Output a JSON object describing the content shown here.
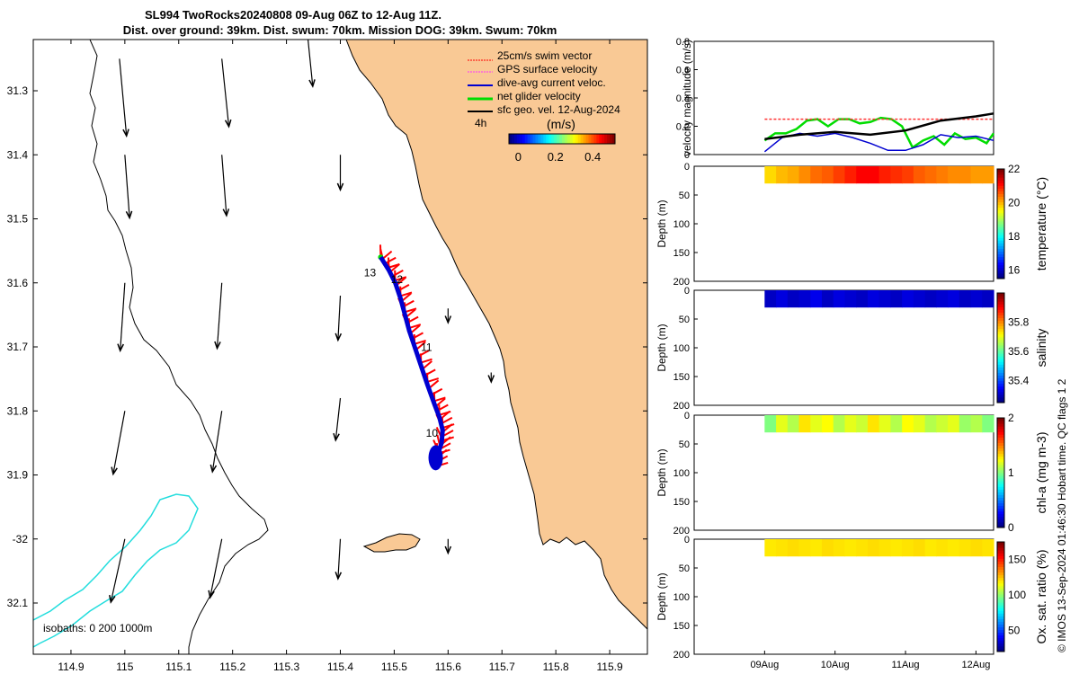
{
  "titles": {
    "line1": "SL994 TwoRocks20240808 09-Aug 06Z to 12-Aug 11Z.",
    "line2": "Dist. over ground: 39km. Dist. swum: 70km. Mission DOG: 39km. Swum: 70km"
  },
  "credit": "© IMOS 13-Sep-2024 01:46:30 Hobart time. QC flags 1  2",
  "colors": {
    "land": "#f9c995",
    "track": "#0000d0",
    "swim": "#ff0000",
    "gps": "#ff33ff",
    "net": "#00dd00",
    "geo": "#000000",
    "isobath200": "#22dddd"
  },
  "chart_data": [
    {
      "type": "map",
      "name": "glider-track-map",
      "xlim": [
        114.83,
        115.97
      ],
      "ylim": [
        -32.18,
        -31.22
      ],
      "xticks": [
        114.9,
        115,
        115.1,
        115.2,
        115.3,
        115.4,
        115.5,
        115.6,
        115.7,
        115.8,
        115.9
      ],
      "xtick_labels": [
        "114.9",
        "115",
        "115.1",
        "115.2",
        "115.3",
        "115.4",
        "115.5",
        "115.6",
        "115.7",
        "115.8",
        "115.9"
      ],
      "yticks": [
        -31.3,
        -31.4,
        -31.5,
        -31.6,
        -31.7,
        -31.8,
        -31.9,
        -32,
        -32.1
      ],
      "ytick_labels": [
        "31.3",
        "31.4",
        "31.5",
        "31.6",
        "31.7",
        "31.8",
        "31.9",
        "-32",
        "32.1"
      ],
      "legend": [
        {
          "key": "swim",
          "label": "25cm/s swim vector"
        },
        {
          "key": "gps",
          "label": "GPS surface velocity"
        },
        {
          "key": "track",
          "label": "dive-avg current veloc."
        },
        {
          "key": "net",
          "label": "net glider velocity"
        },
        {
          "key": "geo",
          "label": "sfc geo. vel. 12-Aug-2024"
        }
      ],
      "scale_label": "4h",
      "colorbar": {
        "label": "(m/s)",
        "ticks": [
          0,
          0.2,
          0.4
        ],
        "tick_labels": [
          "0",
          "0.2",
          "0.4"
        ],
        "range": [
          -0.05,
          0.52
        ]
      },
      "isobaths_label": "isobaths: 0   200  1000m",
      "day_labels": [
        {
          "text": "13",
          "lon": 115.455,
          "lat": -31.59
        },
        {
          "text": "12",
          "lon": 115.505,
          "lat": -31.6
        },
        {
          "text": "11",
          "lon": 115.56,
          "lat": -31.706
        },
        {
          "text": "10",
          "lon": 115.57,
          "lat": -31.84
        }
      ],
      "track": [
        [
          115.475,
          -31.56
        ],
        [
          115.49,
          -31.58
        ],
        [
          115.502,
          -31.6
        ],
        [
          115.512,
          -31.625
        ],
        [
          115.52,
          -31.65
        ],
        [
          115.528,
          -31.675
        ],
        [
          115.538,
          -31.7
        ],
        [
          115.55,
          -31.73
        ],
        [
          115.562,
          -31.76
        ],
        [
          115.575,
          -31.79
        ],
        [
          115.584,
          -31.81
        ],
        [
          115.59,
          -31.83
        ],
        [
          115.588,
          -31.85
        ],
        [
          115.58,
          -31.87
        ],
        [
          115.577,
          -31.89
        ]
      ],
      "geo_vectors": [
        {
          "lon": 114.99,
          "lat": -31.25,
          "u": 0.03,
          "v": -0.33
        },
        {
          "lon": 115.18,
          "lat": -31.25,
          "u": 0.03,
          "v": -0.29
        },
        {
          "lon": 115.34,
          "lat": -31.22,
          "u": 0.02,
          "v": -0.2
        },
        {
          "lon": 115.0,
          "lat": -31.4,
          "u": 0.02,
          "v": -0.27
        },
        {
          "lon": 115.18,
          "lat": -31.4,
          "u": 0.02,
          "v": -0.26
        },
        {
          "lon": 115.4,
          "lat": -31.4,
          "u": 0.0,
          "v": -0.15
        },
        {
          "lon": 115.0,
          "lat": -31.6,
          "u": -0.02,
          "v": -0.29
        },
        {
          "lon": 115.18,
          "lat": -31.6,
          "u": -0.02,
          "v": -0.28
        },
        {
          "lon": 115.4,
          "lat": -31.62,
          "u": -0.01,
          "v": -0.19
        },
        {
          "lon": 115.0,
          "lat": -31.8,
          "u": -0.05,
          "v": -0.27
        },
        {
          "lon": 115.18,
          "lat": -31.8,
          "u": -0.04,
          "v": -0.26
        },
        {
          "lon": 115.4,
          "lat": -31.78,
          "u": -0.02,
          "v": -0.18
        },
        {
          "lon": 115.0,
          "lat": -32.0,
          "u": -0.06,
          "v": -0.27
        },
        {
          "lon": 115.18,
          "lat": -32.0,
          "u": -0.05,
          "v": -0.25
        },
        {
          "lon": 115.4,
          "lat": -32.0,
          "u": -0.01,
          "v": -0.17
        },
        {
          "lon": 115.6,
          "lat": -32.0,
          "u": 0.0,
          "v": -0.06
        },
        {
          "lon": 115.6,
          "lat": -31.64,
          "u": 0.0,
          "v": -0.06
        },
        {
          "lon": 115.68,
          "lat": -31.74,
          "u": 0.0,
          "v": -0.04
        }
      ]
    },
    {
      "type": "line",
      "name": "velocity-magnitude-panel",
      "ylabel": "velocity magnitude (m/s)",
      "ylim": [
        0,
        0.8
      ],
      "yticks": [
        0,
        0.2,
        0.4,
        0.6,
        0.8
      ],
      "ytick_labels": [
        "0",
        "0.2",
        "0.4",
        "0.6",
        "0.8"
      ],
      "xlim": [
        0,
        4.25
      ],
      "series": [
        {
          "name": "net glider velocity",
          "key": "net",
          "x": [
            1.0,
            1.15,
            1.3,
            1.45,
            1.6,
            1.75,
            1.9,
            2.05,
            2.2,
            2.35,
            2.5,
            2.65,
            2.8,
            2.95,
            3.1,
            3.25,
            3.4,
            3.55,
            3.7,
            3.85,
            4.0,
            4.15,
            4.25
          ],
          "values": [
            0.1,
            0.15,
            0.15,
            0.18,
            0.24,
            0.25,
            0.2,
            0.25,
            0.25,
            0.22,
            0.23,
            0.26,
            0.25,
            0.2,
            0.05,
            0.1,
            0.13,
            0.07,
            0.15,
            0.11,
            0.12,
            0.08,
            0.15
          ]
        },
        {
          "name": "dive-avg current veloc.",
          "key": "track",
          "x": [
            1.0,
            1.25,
            1.5,
            1.75,
            2.0,
            2.25,
            2.5,
            2.75,
            3.0,
            3.25,
            3.5,
            3.75,
            4.0,
            4.25
          ],
          "values": [
            0.02,
            0.12,
            0.15,
            0.13,
            0.15,
            0.12,
            0.08,
            0.03,
            0.03,
            0.07,
            0.14,
            0.12,
            0.13,
            0.1
          ]
        },
        {
          "name": "GPS surface velocity",
          "key": "gps",
          "x": [
            1.0,
            4.25
          ],
          "values": [
            0.25,
            0.25
          ]
        },
        {
          "name": "sfc geo. vel.",
          "key": "geo",
          "x": [
            1.0,
            1.5,
            2.0,
            2.5,
            3.0,
            3.5,
            4.0,
            4.25
          ],
          "values": [
            0.11,
            0.14,
            0.16,
            0.14,
            0.17,
            0.24,
            0.27,
            0.29
          ]
        }
      ]
    },
    {
      "type": "heatmap",
      "name": "temperature-panel",
      "ylabel": "Depth (m)",
      "cblabel": "temperature (°C)",
      "yticks": [
        0,
        50,
        100,
        150,
        200
      ],
      "ytick_labels": [
        "0",
        "50",
        "100",
        "150",
        "200"
      ],
      "clim": [
        15.5,
        22
      ],
      "cticks": [
        16,
        18,
        20,
        22
      ],
      "ctick_labels": [
        "16",
        "18",
        "20",
        "22"
      ],
      "depth_range": [
        0,
        30
      ],
      "profile": [
        19.8,
        20.0,
        20.1,
        20.3,
        20.5,
        20.6,
        20.8,
        21.0,
        21.2,
        21.2,
        21.0,
        20.9,
        20.8,
        20.6,
        20.5,
        20.4,
        20.3,
        20.3,
        20.2,
        20.2
      ]
    },
    {
      "type": "heatmap",
      "name": "salinity-panel",
      "ylabel": "Depth (m)",
      "cblabel": "salinity",
      "yticks": [
        0,
        50,
        100,
        150,
        200
      ],
      "ytick_labels": [
        "0",
        "50",
        "100",
        "150",
        "200"
      ],
      "clim": [
        35.25,
        36.0
      ],
      "cticks": [
        35.4,
        35.6,
        35.8
      ],
      "ctick_labels": [
        "35.4",
        "35.6",
        "35.8"
      ],
      "depth_range": [
        0,
        30
      ],
      "profile": [
        35.3,
        35.32,
        35.3,
        35.31,
        35.33,
        35.3,
        35.32,
        35.31,
        35.3,
        35.32,
        35.31,
        35.3,
        35.32,
        35.31,
        35.3,
        35.31,
        35.32,
        35.3,
        35.31,
        35.3
      ]
    },
    {
      "type": "heatmap",
      "name": "chlorophyll-panel",
      "ylabel": "Depth (m)",
      "cblabel": "chl-a (mg m-3)",
      "yticks": [
        0,
        50,
        100,
        150,
        200
      ],
      "ytick_labels": [
        "0",
        "50",
        "100",
        "150",
        "200"
      ],
      "clim": [
        0,
        2
      ],
      "cticks": [
        0,
        1,
        2
      ],
      "ctick_labels": [
        "0",
        "1",
        "2"
      ],
      "depth_range": [
        0,
        30
      ],
      "profile": [
        1.0,
        1.2,
        1.1,
        1.3,
        1.2,
        1.25,
        1.1,
        1.2,
        1.15,
        1.3,
        1.2,
        1.1,
        1.25,
        1.2,
        1.1,
        1.15,
        1.2,
        1.05,
        1.1,
        1.0
      ]
    },
    {
      "type": "heatmap",
      "name": "oxygen-panel",
      "ylabel": "Depth (m)",
      "cblabel": "Ox. sat. ratio (%)",
      "yticks": [
        0,
        50,
        100,
        150,
        200
      ],
      "ytick_labels": [
        "0",
        "50",
        "100",
        "150",
        "200"
      ],
      "clim": [
        20,
        175
      ],
      "cticks": [
        50,
        100,
        150
      ],
      "ctick_labels": [
        "50",
        "100",
        "150"
      ],
      "depth_range": [
        0,
        30
      ],
      "profile": [
        120,
        121,
        122,
        121,
        120,
        122,
        121,
        120,
        121,
        122,
        121,
        120,
        121,
        122,
        120,
        121,
        120,
        121,
        122,
        121
      ],
      "xticks": [
        1,
        2,
        3,
        4
      ],
      "xtick_labels": [
        "09Aug",
        "10Aug",
        "11Aug",
        "12Aug"
      ]
    }
  ]
}
